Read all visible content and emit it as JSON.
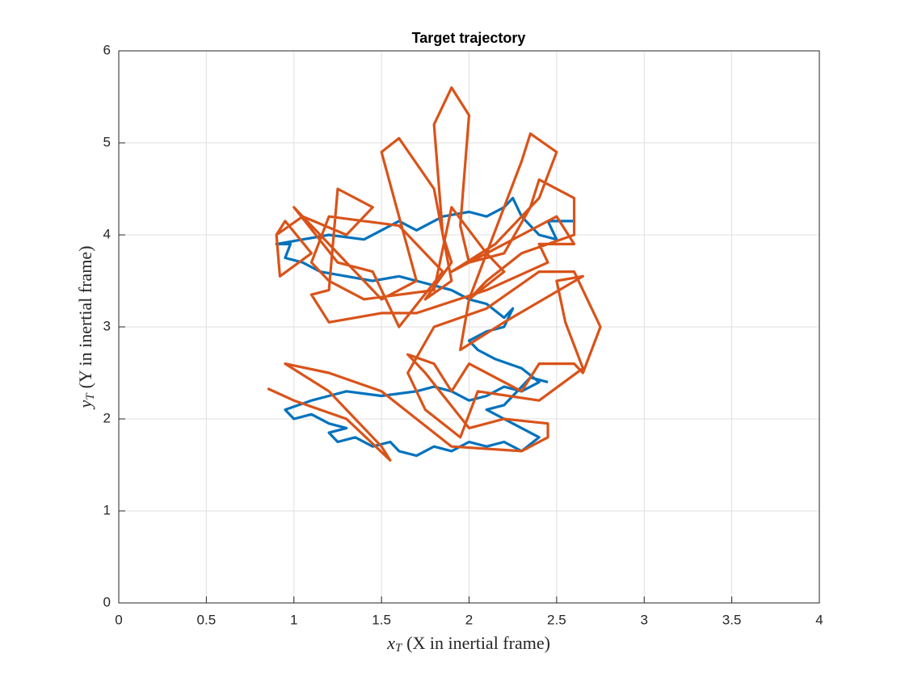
{
  "chart_data": {
    "type": "line",
    "title": "Target trajectory",
    "xlabel": {
      "symbol": "x",
      "subscript": "T",
      "text": "(X in inertial frame)"
    },
    "ylabel": {
      "symbol": "y",
      "subscript": "T",
      "text": "(Y in inertial frame)"
    },
    "xlim": [
      0,
      4
    ],
    "xticks": [
      0,
      0.5,
      1,
      1.5,
      2,
      2.5,
      3,
      3.5,
      4
    ],
    "ylim": [
      0,
      6
    ],
    "yticks": [
      0,
      1,
      2,
      3,
      4,
      5,
      6
    ],
    "grid": true,
    "series": [
      {
        "color": "#0072bd",
        "x": [
          2.6,
          2.45,
          2.5,
          2.4,
          2.3,
          2.25,
          2.2,
          2.1,
          2.0,
          1.85,
          1.7,
          1.6,
          1.5,
          1.4,
          1.2,
          0.9,
          0.98,
          0.95,
          1.05,
          1.15,
          1.3,
          1.45,
          1.6,
          1.7,
          1.8,
          1.9,
          2.0,
          2.1,
          2.2,
          2.25,
          2.2,
          2.1,
          2.05,
          2.0,
          2.05,
          2.15,
          2.3,
          2.4,
          2.3,
          2.2,
          2.1,
          2.0,
          1.9,
          1.8,
          1.7,
          1.5,
          1.3,
          1.2,
          1.1,
          0.95,
          1.0,
          1.1,
          1.2,
          1.3,
          1.2,
          1.25,
          1.35,
          1.45,
          1.55,
          1.6,
          1.7,
          1.8,
          1.9,
          2.0,
          2.1,
          2.2,
          2.3,
          2.4,
          2.3,
          2.2,
          2.1,
          2.2,
          2.35,
          2.45
        ],
        "values": [
          4.15,
          4.15,
          3.95,
          4.0,
          4.2,
          4.4,
          4.3,
          4.2,
          4.25,
          4.2,
          4.05,
          4.15,
          4.05,
          3.95,
          4.0,
          3.9,
          3.9,
          3.75,
          3.7,
          3.6,
          3.55,
          3.5,
          3.55,
          3.5,
          3.45,
          3.4,
          3.3,
          3.25,
          3.1,
          3.2,
          3.0,
          2.95,
          2.9,
          2.85,
          2.75,
          2.65,
          2.55,
          2.4,
          2.3,
          2.35,
          2.25,
          2.2,
          2.3,
          2.35,
          2.3,
          2.25,
          2.3,
          2.25,
          2.2,
          2.1,
          2.0,
          2.05,
          1.95,
          1.9,
          1.85,
          1.75,
          1.8,
          1.7,
          1.75,
          1.65,
          1.6,
          1.7,
          1.65,
          1.75,
          1.7,
          1.75,
          1.65,
          1.8,
          1.9,
          2.0,
          2.1,
          2.15,
          2.45,
          2.4
        ]
      },
      {
        "color": "#d95319",
        "x": [
          0.85,
          1.0,
          1.3,
          1.55,
          1.5,
          1.2,
          0.95,
          1.2,
          1.5,
          1.7,
          1.9,
          2.3,
          2.45,
          2.45,
          2.2,
          2.0,
          1.75,
          1.65,
          1.8,
          1.9,
          2.0,
          2.2,
          2.3,
          2.4,
          2.6,
          2.65,
          2.75,
          2.6,
          2.4,
          2.1,
          1.8,
          1.65,
          1.75,
          1.95,
          2.05,
          2.4,
          2.65,
          2.55,
          2.5,
          2.65,
          2.2,
          1.95,
          2.0,
          2.2,
          2.1,
          1.9,
          1.8,
          1.4,
          1.2,
          1.1,
          1.2,
          1.6,
          1.85,
          1.6,
          1.45,
          1.25,
          1.0,
          1.2,
          1.5,
          1.7,
          1.5,
          1.6,
          1.8,
          1.9,
          1.75,
          1.9,
          1.85,
          1.8,
          1.9,
          2.0,
          1.95,
          2.0,
          2.2,
          2.35,
          2.4,
          2.6,
          2.6,
          2.3,
          2.1,
          2.0,
          2.3,
          2.35,
          2.5,
          2.4,
          2.15,
          1.9,
          2.3,
          2.5,
          2.6,
          2.4,
          2.45,
          2.1,
          1.7,
          1.5,
          1.2,
          1.1,
          1.2,
          1.25,
          1.45,
          1.3,
          1.05,
          0.9,
          0.92,
          1.1,
          0.95,
          0.9
        ],
        "values": [
          2.33,
          2.2,
          2.0,
          1.55,
          1.7,
          2.3,
          2.6,
          2.5,
          2.3,
          2.0,
          1.7,
          1.65,
          1.8,
          1.95,
          2.0,
          1.9,
          2.5,
          2.7,
          2.6,
          2.3,
          2.6,
          2.4,
          2.3,
          2.6,
          2.6,
          2.5,
          3.0,
          3.6,
          3.6,
          3.2,
          3.0,
          2.5,
          2.1,
          1.8,
          2.3,
          2.2,
          2.55,
          3.05,
          3.5,
          3.55,
          3.05,
          2.75,
          3.3,
          3.6,
          3.8,
          4.3,
          3.4,
          3.3,
          3.5,
          3.7,
          4.2,
          4.1,
          3.6,
          3.0,
          3.6,
          3.7,
          4.3,
          3.9,
          3.3,
          3.5,
          4.9,
          5.05,
          4.5,
          3.5,
          3.3,
          3.7,
          4.0,
          5.2,
          5.6,
          5.3,
          4.1,
          3.7,
          3.8,
          4.3,
          4.6,
          4.4,
          4.0,
          3.8,
          3.5,
          3.3,
          4.8,
          5.1,
          4.9,
          4.4,
          3.9,
          3.6,
          4.0,
          4.2,
          3.9,
          3.9,
          3.7,
          3.4,
          3.15,
          3.15,
          3.05,
          3.35,
          3.4,
          4.5,
          4.3,
          4.0,
          4.2,
          4.0,
          3.55,
          3.8,
          4.15,
          4.0
        ]
      }
    ]
  }
}
